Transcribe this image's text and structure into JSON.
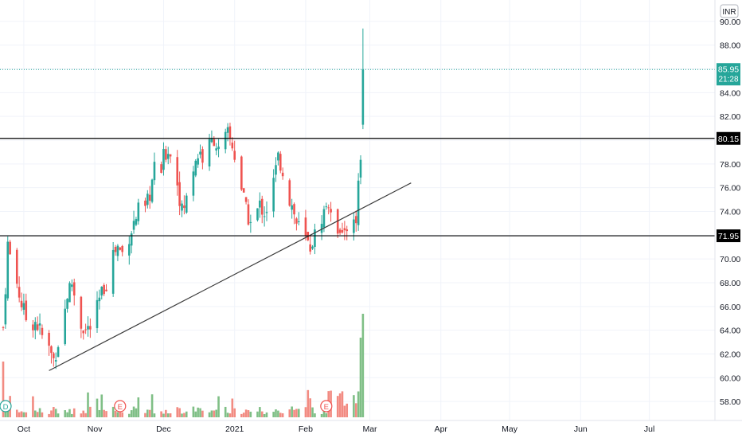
{
  "currency_badge": "INR",
  "colors": {
    "up": "#26a69a",
    "down": "#ef5350",
    "vol_up": "#7fbf86",
    "vol_down": "#f28b82",
    "level_line": "#000000",
    "trend_line": "#3a3a3a",
    "grid": "#f0f3fa",
    "axis_text": "#131722",
    "last_price_bg": "#26a69a",
    "level_label_bg": "#000000"
  },
  "last_price": {
    "value": "85.95",
    "countdown": "21:28"
  },
  "levels": [
    {
      "label": "80.15",
      "value": 80.15
    },
    {
      "label": "71.95",
      "value": 71.95
    }
  ],
  "events": [
    {
      "label": "D",
      "type": "dividend",
      "date": "2020-09-22"
    },
    {
      "label": "E",
      "type": "earnings",
      "date": "2020-11-12"
    },
    {
      "label": "E",
      "type": "earnings",
      "date": "2021-02-10"
    }
  ],
  "chart_data": {
    "type": "candlestick",
    "x_range": [
      "2020-09-22",
      "2021-07-31"
    ],
    "y_range": [
      56.4,
      91.8
    ],
    "y_ticks": [
      "58.00",
      "60.00",
      "62.00",
      "64.00",
      "66.00",
      "68.00",
      "70.00",
      "72.00",
      "74.00",
      "76.00",
      "78.00",
      "80.00",
      "82.00",
      "84.00",
      "86.00",
      "88.00",
      "90.00"
    ],
    "x_ticks": [
      {
        "label": "Oct",
        "date": "2020-10-01"
      },
      {
        "label": "Nov",
        "date": "2020-11-01"
      },
      {
        "label": "Dec",
        "date": "2020-12-01"
      },
      {
        "label": "2021",
        "date": "2021-01-01"
      },
      {
        "label": "Feb",
        "date": "2021-02-01"
      },
      {
        "label": "Mar",
        "date": "2021-03-01"
      },
      {
        "label": "Apr",
        "date": "2021-04-01"
      },
      {
        "label": "May",
        "date": "2021-05-01"
      },
      {
        "label": "Jun",
        "date": "2021-06-01"
      },
      {
        "label": "Jul",
        "date": "2021-07-01"
      }
    ],
    "trendline": {
      "start": [
        "2020-10-12",
        60.6
      ],
      "end": [
        "2021-03-19",
        76.4
      ]
    },
    "close_path": [
      [
        "2020-09-22",
        64.2
      ],
      [
        "2020-09-24",
        71.2
      ],
      [
        "2020-09-26",
        69.4
      ],
      [
        "2020-09-28",
        68.0
      ],
      [
        "2020-09-30",
        66.2
      ],
      [
        "2020-10-02",
        65.0
      ],
      [
        "2020-10-04",
        64.5
      ],
      [
        "2020-10-06",
        64.8
      ],
      [
        "2020-10-08",
        64.0
      ],
      [
        "2020-10-10",
        63.0
      ],
      [
        "2020-10-12",
        62.4
      ],
      [
        "2020-10-14",
        61.5
      ],
      [
        "2020-10-16",
        63.0
      ],
      [
        "2020-10-18",
        64.5
      ],
      [
        "2020-10-20",
        67.0
      ],
      [
        "2020-10-22",
        68.0
      ],
      [
        "2020-10-24",
        66.0
      ],
      [
        "2020-10-26",
        64.5
      ],
      [
        "2020-10-28",
        64.0
      ],
      [
        "2020-10-30",
        64.2
      ],
      [
        "2020-11-01",
        65.0
      ],
      [
        "2020-11-03",
        66.5
      ],
      [
        "2020-11-05",
        67.6
      ],
      [
        "2020-11-07",
        68.5
      ],
      [
        "2020-11-09",
        70.5
      ],
      [
        "2020-11-11",
        71.0
      ],
      [
        "2020-11-13",
        70.5
      ],
      [
        "2020-11-15",
        71.5
      ],
      [
        "2020-11-17",
        72.5
      ],
      [
        "2020-11-19",
        73.5
      ],
      [
        "2020-11-21",
        74.5
      ],
      [
        "2020-11-23",
        74.0
      ],
      [
        "2020-11-25",
        75.5
      ],
      [
        "2020-11-27",
        77.5
      ],
      [
        "2020-11-29",
        76.5
      ],
      [
        "2020-12-01",
        78.5
      ],
      [
        "2020-12-03",
        79.3
      ],
      [
        "2020-12-05",
        78.0
      ],
      [
        "2020-12-07",
        76.5
      ],
      [
        "2020-12-09",
        74.0
      ],
      [
        "2020-12-11",
        75.0
      ],
      [
        "2020-12-13",
        77.0
      ],
      [
        "2020-12-15",
        78.5
      ],
      [
        "2020-12-17",
        79.0
      ],
      [
        "2020-12-19",
        78.0
      ],
      [
        "2020-12-21",
        79.5
      ],
      [
        "2020-12-23",
        80.2
      ],
      [
        "2020-12-25",
        79.0
      ],
      [
        "2020-12-27",
        79.5
      ],
      [
        "2020-12-29",
        80.5
      ],
      [
        "2020-12-31",
        79.5
      ],
      [
        "2021-01-02",
        78.0
      ],
      [
        "2021-01-04",
        76.0
      ],
      [
        "2021-01-06",
        74.0
      ],
      [
        "2021-01-08",
        73.0
      ],
      [
        "2021-01-10",
        73.5
      ],
      [
        "2021-01-12",
        74.5
      ],
      [
        "2021-01-14",
        74.0
      ],
      [
        "2021-01-16",
        74.5
      ],
      [
        "2021-01-18",
        76.5
      ],
      [
        "2021-01-20",
        78.5
      ],
      [
        "2021-01-22",
        77.5
      ],
      [
        "2021-01-24",
        75.5
      ],
      [
        "2021-01-26",
        74.5
      ],
      [
        "2021-01-28",
        73.0
      ],
      [
        "2021-01-30",
        72.4
      ],
      [
        "2021-02-01",
        71.5
      ],
      [
        "2021-02-03",
        71.0
      ],
      [
        "2021-02-05",
        72.0
      ],
      [
        "2021-02-07",
        73.0
      ],
      [
        "2021-02-09",
        74.0
      ],
      [
        "2021-02-11",
        74.8
      ],
      [
        "2021-02-13",
        73.5
      ],
      [
        "2021-02-15",
        72.8
      ],
      [
        "2021-02-17",
        71.8
      ],
      [
        "2021-02-19",
        72.6
      ],
      [
        "2021-02-21",
        74.2
      ],
      [
        "2021-02-23",
        73.6
      ],
      [
        "2021-02-25",
        78.5
      ],
      [
        "2021-02-27",
        85.95
      ]
    ],
    "volume_range": [
      0,
      1
    ]
  }
}
